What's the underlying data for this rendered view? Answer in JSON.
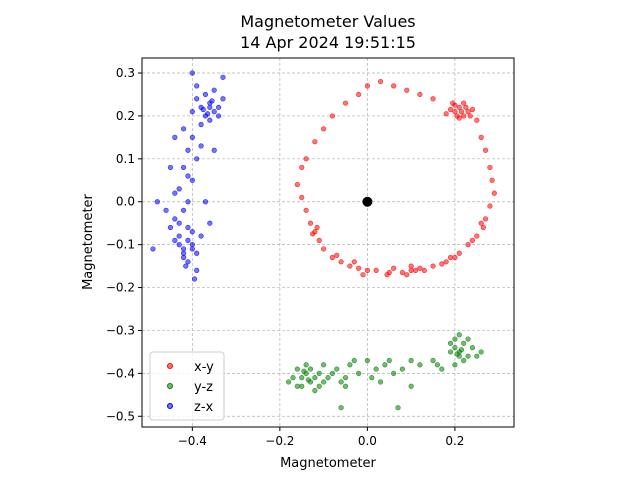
{
  "chart_data": {
    "type": "scatter",
    "title": "Magnetometer Values",
    "subtitle": "14 Apr 2024 19:51:15",
    "xlabel": "Magnetometer",
    "ylabel": "Magnetometer",
    "xlim": [
      -0.515,
      0.335
    ],
    "ylim": [
      -0.525,
      0.335
    ],
    "x_ticks": [
      -0.4,
      -0.2,
      0.0,
      0.2
    ],
    "x_tick_labels": [
      "−0.4",
      "−0.2",
      "0.0",
      "0.2"
    ],
    "y_ticks": [
      -0.5,
      -0.4,
      -0.3,
      -0.2,
      -0.1,
      0.0,
      0.1,
      0.2,
      0.3
    ],
    "y_tick_labels": [
      "−0.5",
      "−0.4",
      "−0.3",
      "−0.2",
      "−0.1",
      "0.0",
      "0.1",
      "0.2",
      "0.3"
    ],
    "grid": true,
    "legend_position": "lower-left",
    "origin_marker": {
      "x": 0,
      "y": 0,
      "color": "#000000"
    },
    "series": [
      {
        "name": "x-y",
        "color": "#ff0000",
        "points": [
          [
            0.2,
            0.21
          ],
          [
            0.21,
            0.22
          ],
          [
            0.22,
            0.2
          ],
          [
            0.19,
            0.215
          ],
          [
            0.23,
            0.21
          ],
          [
            0.21,
            0.195
          ],
          [
            0.2,
            0.225
          ],
          [
            0.22,
            0.23
          ],
          [
            0.24,
            0.215
          ],
          [
            0.18,
            0.205
          ],
          [
            0.215,
            0.21
          ],
          [
            0.205,
            0.2
          ],
          [
            0.225,
            0.22
          ],
          [
            0.195,
            0.23
          ],
          [
            0.235,
            0.2
          ],
          [
            0.25,
            0.19
          ],
          [
            0.26,
            0.15
          ],
          [
            0.27,
            0.12
          ],
          [
            0.28,
            0.08
          ],
          [
            0.285,
            0.05
          ],
          [
            0.29,
            0.02
          ],
          [
            0.28,
            -0.01
          ],
          [
            0.27,
            -0.04
          ],
          [
            0.265,
            -0.06
          ],
          [
            0.25,
            -0.08
          ],
          [
            0.23,
            -0.1
          ],
          [
            0.21,
            -0.12
          ],
          [
            0.19,
            -0.13
          ],
          [
            0.18,
            -0.14
          ],
          [
            0.15,
            -0.15
          ],
          [
            0.12,
            -0.155
          ],
          [
            0.1,
            -0.16
          ],
          [
            0.08,
            -0.165
          ],
          [
            0.05,
            -0.165
          ],
          [
            0.02,
            -0.16
          ],
          [
            0.0,
            -0.16
          ],
          [
            -0.02,
            -0.155
          ],
          [
            -0.04,
            -0.15
          ],
          [
            -0.06,
            -0.14
          ],
          [
            -0.08,
            -0.13
          ],
          [
            -0.1,
            -0.11
          ],
          [
            -0.11,
            -0.09
          ],
          [
            -0.12,
            -0.07
          ],
          [
            -0.13,
            -0.05
          ],
          [
            -0.14,
            -0.02
          ],
          [
            -0.15,
            0.01
          ],
          [
            -0.16,
            0.04
          ],
          [
            -0.15,
            0.08
          ],
          [
            -0.14,
            0.1
          ],
          [
            -0.12,
            0.14
          ],
          [
            -0.1,
            0.17
          ],
          [
            -0.08,
            0.2
          ],
          [
            -0.05,
            0.23
          ],
          [
            -0.02,
            0.25
          ],
          [
            0.0,
            0.27
          ],
          [
            0.03,
            0.28
          ],
          [
            0.06,
            0.27
          ],
          [
            0.09,
            0.26
          ],
          [
            0.12,
            0.25
          ],
          [
            0.15,
            0.24
          ],
          [
            0.11,
            -0.16
          ],
          [
            0.09,
            -0.17
          ],
          [
            0.06,
            -0.155
          ],
          [
            -0.03,
            -0.14
          ],
          [
            -0.07,
            -0.125
          ],
          [
            -0.115,
            -0.06
          ],
          [
            -0.125,
            -0.075
          ],
          [
            0.26,
            -0.05
          ],
          [
            0.24,
            -0.09
          ],
          [
            0.2,
            -0.13
          ],
          [
            0.17,
            -0.145
          ],
          [
            0.045,
            -0.17
          ],
          [
            -0.01,
            -0.17
          ],
          [
            0.13,
            -0.16
          ],
          [
            0.1,
            -0.15
          ]
        ]
      },
      {
        "name": "y-z",
        "color": "#008000",
        "points": [
          [
            -0.15,
            -0.41
          ],
          [
            -0.14,
            -0.4
          ],
          [
            -0.13,
            -0.42
          ],
          [
            -0.16,
            -0.39
          ],
          [
            -0.12,
            -0.41
          ],
          [
            -0.15,
            -0.43
          ],
          [
            -0.14,
            -0.38
          ],
          [
            -0.11,
            -0.4
          ],
          [
            -0.17,
            -0.41
          ],
          [
            -0.13,
            -0.39
          ],
          [
            -0.1,
            -0.42
          ],
          [
            -0.12,
            -0.44
          ],
          [
            -0.16,
            -0.43
          ],
          [
            -0.09,
            -0.41
          ],
          [
            -0.08,
            -0.4
          ],
          [
            -0.07,
            -0.39
          ],
          [
            -0.05,
            -0.41
          ],
          [
            -0.04,
            -0.38
          ],
          [
            -0.02,
            -0.4
          ],
          [
            0.0,
            -0.37
          ],
          [
            0.02,
            -0.39
          ],
          [
            -0.06,
            -0.42
          ],
          [
            -0.03,
            -0.37
          ],
          [
            0.01,
            -0.41
          ],
          [
            0.04,
            -0.38
          ],
          [
            0.06,
            -0.4
          ],
          [
            0.08,
            -0.39
          ],
          [
            0.1,
            -0.37
          ],
          [
            0.12,
            -0.38
          ],
          [
            0.15,
            -0.37
          ],
          [
            0.2,
            -0.34
          ],
          [
            0.21,
            -0.35
          ],
          [
            0.22,
            -0.33
          ],
          [
            0.2,
            -0.32
          ],
          [
            0.23,
            -0.36
          ],
          [
            0.21,
            -0.31
          ],
          [
            0.22,
            -0.37
          ],
          [
            0.19,
            -0.35
          ],
          [
            0.24,
            -0.34
          ],
          [
            0.25,
            -0.36
          ],
          [
            0.2,
            -0.38
          ],
          [
            0.23,
            -0.32
          ],
          [
            0.21,
            -0.36
          ],
          [
            0.26,
            -0.35
          ],
          [
            0.19,
            -0.33
          ],
          [
            -0.18,
            -0.42
          ],
          [
            -0.1,
            -0.38
          ],
          [
            -0.05,
            -0.43
          ],
          [
            0.03,
            -0.42
          ],
          [
            0.07,
            -0.48
          ],
          [
            -0.06,
            -0.48
          ],
          [
            0.05,
            -0.37
          ],
          [
            0.16,
            -0.38
          ],
          [
            0.17,
            -0.39
          ],
          [
            0.1,
            -0.43
          ],
          [
            -0.11,
            -0.43
          ],
          [
            -0.135,
            -0.415
          ],
          [
            -0.145,
            -0.395
          ],
          [
            0.215,
            -0.345
          ],
          [
            0.205,
            -0.355
          ]
        ]
      },
      {
        "name": "z-x",
        "color": "#0000ff",
        "points": [
          [
            -0.38,
            0.22
          ],
          [
            -0.37,
            0.2
          ],
          [
            -0.36,
            0.23
          ],
          [
            -0.35,
            0.21
          ],
          [
            -0.39,
            0.24
          ],
          [
            -0.34,
            0.22
          ],
          [
            -0.37,
            0.25
          ],
          [
            -0.36,
            0.19
          ],
          [
            -0.33,
            0.24
          ],
          [
            -0.4,
            0.21
          ],
          [
            -0.35,
            0.26
          ],
          [
            -0.38,
            0.18
          ],
          [
            -0.34,
            0.2
          ],
          [
            -0.39,
            0.27
          ],
          [
            -0.36,
            0.22
          ],
          [
            -0.4,
            0.15
          ],
          [
            -0.41,
            0.12
          ],
          [
            -0.39,
            0.1
          ],
          [
            -0.42,
            0.08
          ],
          [
            -0.4,
            0.05
          ],
          [
            -0.43,
            0.03
          ],
          [
            -0.41,
            0.0
          ],
          [
            -0.42,
            -0.02
          ],
          [
            -0.44,
            -0.04
          ],
          [
            -0.41,
            -0.06
          ],
          [
            -0.43,
            -0.08
          ],
          [
            -0.4,
            -0.1
          ],
          [
            -0.42,
            -0.12
          ],
          [
            -0.41,
            -0.14
          ],
          [
            -0.39,
            -0.16
          ],
          [
            -0.41,
            -0.09
          ],
          [
            -0.42,
            -0.11
          ],
          [
            -0.4,
            -0.07
          ],
          [
            -0.43,
            -0.1
          ],
          [
            -0.39,
            -0.12
          ],
          [
            -0.44,
            -0.09
          ],
          [
            -0.42,
            -0.13
          ],
          [
            -0.4,
            -0.11
          ],
          [
            -0.45,
            -0.06
          ],
          [
            -0.38,
            -0.08
          ],
          [
            -0.43,
            -0.05
          ],
          [
            -0.41,
            0.06
          ],
          [
            -0.44,
            0.02
          ],
          [
            -0.38,
            0.13
          ],
          [
            -0.46,
            -0.02
          ],
          [
            -0.49,
            -0.11
          ],
          [
            -0.48,
            0.0
          ],
          [
            -0.45,
            0.08
          ],
          [
            -0.37,
            0.0
          ],
          [
            -0.36,
            -0.05
          ],
          [
            -0.42,
            0.17
          ],
          [
            -0.4,
            0.3
          ],
          [
            -0.33,
            0.29
          ],
          [
            -0.35,
            0.12
          ],
          [
            -0.44,
            0.15
          ],
          [
            -0.395,
            -0.18
          ],
          [
            -0.415,
            -0.15
          ],
          [
            -0.375,
            0.215
          ],
          [
            -0.355,
            0.235
          ],
          [
            -0.365,
            0.205
          ]
        ]
      }
    ]
  }
}
